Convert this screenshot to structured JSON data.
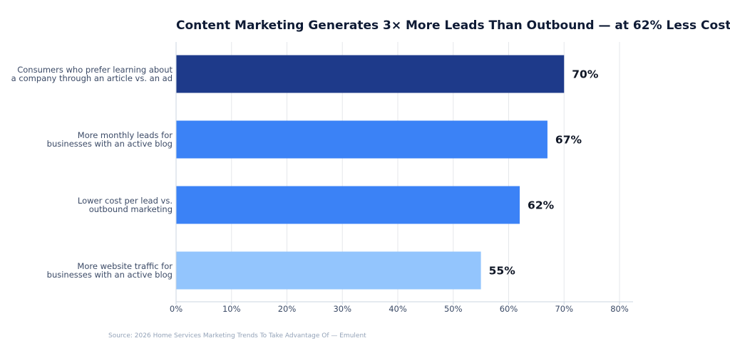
{
  "chart_data": {
    "type": "bar",
    "orientation": "horizontal",
    "title": "Content Marketing Generates 3× More Leads Than Outbound — at 62% Less Cost",
    "categories": [
      [
        "Consumers who prefer learning about",
        "a company through an article vs. an ad"
      ],
      [
        "More monthly leads for",
        "businesses with an active blog"
      ],
      [
        "Lower cost per lead vs.",
        "outbound marketing"
      ],
      [
        "More website traffic for",
        "businesses with an active blog"
      ]
    ],
    "values": [
      70,
      67,
      62,
      55
    ],
    "value_labels": [
      "70%",
      "67%",
      "62%",
      "55%"
    ],
    "bar_colors": [
      "#1e3a8a",
      "#3b82f6",
      "#3b82f6",
      "#93c5fd"
    ],
    "xlim": [
      0,
      80
    ],
    "xticks": [
      0,
      10,
      20,
      30,
      40,
      50,
      60,
      70,
      80
    ],
    "xtick_labels": [
      "0%",
      "10%",
      "20%",
      "30%",
      "40%",
      "50%",
      "60%",
      "70%",
      "80%"
    ],
    "grid": "vertical",
    "xlabel": "",
    "ylabel": ""
  },
  "source": "Source: 2026 Home Services Marketing Trends To Take Advantage Of — Emulent"
}
